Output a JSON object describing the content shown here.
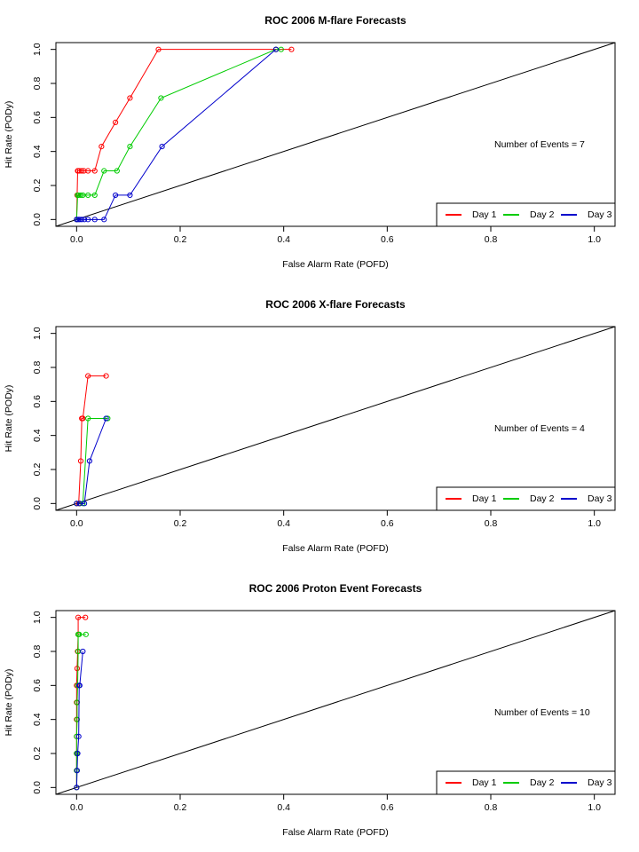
{
  "chart_data": [
    {
      "type": "line",
      "title": "ROC  2006 M-flare Forecasts",
      "xlabel": "False Alarm Rate (POFD)",
      "ylabel": "Hit Rate (PODy)",
      "xlim": [
        -0.04,
        1.04
      ],
      "ylim": [
        -0.04,
        1.04
      ],
      "xticks": [
        "0.0",
        "0.2",
        "0.4",
        "0.6",
        "0.8",
        "1.0"
      ],
      "yticks": [
        "0.0",
        "0.2",
        "0.4",
        "0.6",
        "0.8",
        "1.0"
      ],
      "diagonal": true,
      "annotation": "Number of Events =  7",
      "legend_position": "bottom-right",
      "series": [
        {
          "name": "Day 1",
          "color": "#ff0000",
          "x": [
            0.0,
            0.001,
            0.002,
            0.003,
            0.006,
            0.01,
            0.014,
            0.022,
            0.035,
            0.048,
            0.075,
            0.103,
            0.158,
            0.385,
            0.415
          ],
          "y": [
            0.0,
            0.143,
            0.286,
            0.286,
            0.286,
            0.286,
            0.286,
            0.286,
            0.286,
            0.429,
            0.571,
            0.714,
            1.0,
            1.0,
            1.0
          ]
        },
        {
          "name": "Day 2",
          "color": "#00cc00",
          "x": [
            0.0,
            0.002,
            0.004,
            0.008,
            0.012,
            0.022,
            0.035,
            0.053,
            0.078,
            0.103,
            0.163,
            0.385,
            0.395
          ],
          "y": [
            0.0,
            0.143,
            0.143,
            0.143,
            0.143,
            0.143,
            0.143,
            0.286,
            0.286,
            0.429,
            0.714,
            1.0,
            1.0
          ]
        },
        {
          "name": "Day 3",
          "color": "#0000cc",
          "x": [
            0.0,
            0.003,
            0.006,
            0.01,
            0.015,
            0.022,
            0.035,
            0.053,
            0.075,
            0.103,
            0.165,
            0.385
          ],
          "y": [
            0.0,
            0.0,
            0.0,
            0.0,
            0.0,
            0.0,
            0.0,
            0.0,
            0.143,
            0.143,
            0.429,
            1.0
          ]
        }
      ]
    },
    {
      "type": "line",
      "title": "ROC  2006 X-flare Forecasts",
      "xlabel": "False Alarm Rate (POFD)",
      "ylabel": "Hit Rate (PODy)",
      "xlim": [
        -0.04,
        1.04
      ],
      "ylim": [
        -0.04,
        1.04
      ],
      "xticks": [
        "0.0",
        "0.2",
        "0.4",
        "0.6",
        "0.8",
        "1.0"
      ],
      "yticks": [
        "0.0",
        "0.2",
        "0.4",
        "0.6",
        "0.8",
        "1.0"
      ],
      "diagonal": true,
      "annotation": "Number of Events =  4",
      "legend_position": "bottom-right",
      "series": [
        {
          "name": "Day 1",
          "color": "#ff0000",
          "x": [
            0.0,
            0.004,
            0.008,
            0.01,
            0.012,
            0.022,
            0.057
          ],
          "y": [
            0.0,
            0.0,
            0.25,
            0.5,
            0.5,
            0.75,
            0.75
          ]
        },
        {
          "name": "Day 2",
          "color": "#00cc00",
          "x": [
            0.0,
            0.006,
            0.012,
            0.022,
            0.06
          ],
          "y": [
            0.0,
            0.0,
            0.0,
            0.5,
            0.5
          ]
        },
        {
          "name": "Day 3",
          "color": "#0000cc",
          "x": [
            0.0,
            0.006,
            0.015,
            0.025,
            0.057
          ],
          "y": [
            0.0,
            0.0,
            0.0,
            0.25,
            0.5
          ]
        }
      ]
    },
    {
      "type": "line",
      "title": "ROC  2006 Proton Event Forecasts",
      "xlabel": "False Alarm Rate (POFD)",
      "ylabel": "Hit Rate (PODy)",
      "xlim": [
        -0.04,
        1.04
      ],
      "ylim": [
        -0.04,
        1.04
      ],
      "xticks": [
        "0.0",
        "0.2",
        "0.4",
        "0.6",
        "0.8",
        "1.0"
      ],
      "yticks": [
        "0.0",
        "0.2",
        "0.4",
        "0.6",
        "0.8",
        "1.0"
      ],
      "diagonal": true,
      "annotation": "Number of Events =  10",
      "legend_position": "bottom-right",
      "series": [
        {
          "name": "Day 1",
          "color": "#ff0000",
          "x": [
            0.0,
            0.0,
            0.0,
            0.0,
            0.0,
            0.0,
            0.0,
            0.001,
            0.002,
            0.003,
            0.003,
            0.017
          ],
          "y": [
            0.0,
            0.1,
            0.2,
            0.3,
            0.4,
            0.5,
            0.6,
            0.7,
            0.8,
            0.9,
            1.0,
            1.0
          ]
        },
        {
          "name": "Day 2",
          "color": "#00cc00",
          "x": [
            0.0,
            0.0,
            0.0,
            0.0,
            0.001,
            0.001,
            0.002,
            0.003,
            0.003,
            0.005,
            0.018
          ],
          "y": [
            0.0,
            0.1,
            0.2,
            0.3,
            0.4,
            0.5,
            0.6,
            0.8,
            0.9,
            0.9,
            0.9
          ]
        },
        {
          "name": "Day 3",
          "color": "#0000cc",
          "x": [
            0.0,
            0.001,
            0.002,
            0.004,
            0.005,
            0.006,
            0.012
          ],
          "y": [
            0.0,
            0.1,
            0.2,
            0.3,
            0.6,
            0.6,
            0.8
          ]
        }
      ]
    }
  ]
}
